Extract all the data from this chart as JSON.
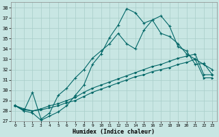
{
  "xlabel": "Humidex (Indice chaleur)",
  "xlim": [
    -0.5,
    23.5
  ],
  "ylim": [
    27,
    38.5
  ],
  "yticks": [
    27,
    28,
    29,
    30,
    31,
    32,
    33,
    34,
    35,
    36,
    37,
    38
  ],
  "xticks": [
    0,
    1,
    2,
    3,
    4,
    5,
    6,
    7,
    8,
    9,
    10,
    11,
    12,
    13,
    14,
    15,
    16,
    17,
    18,
    19,
    20,
    21,
    22,
    23
  ],
  "bg_color": "#c8e6e3",
  "grid_color": "#a8cdc9",
  "line_color": "#006666",
  "line1_y": [
    28.5,
    28.0,
    27.8,
    27.1,
    27.5,
    27.9,
    28.5,
    29.5,
    30.5,
    32.5,
    33.5,
    35.1,
    36.3,
    37.9,
    37.5,
    36.5,
    36.8,
    37.2,
    36.2,
    34.2,
    33.8,
    32.5,
    32.6,
    31.5
  ],
  "line2_y": [
    28.5,
    28.0,
    29.8,
    27.2,
    27.8,
    29.5,
    30.2,
    31.2,
    32.0,
    33.1,
    33.8,
    34.5,
    35.5,
    34.5,
    34.0,
    35.8,
    36.8,
    35.5,
    35.2,
    34.5,
    33.5,
    33.0,
    32.5,
    32.0
  ],
  "line3_y": [
    28.5,
    28.2,
    28.0,
    28.2,
    28.5,
    28.7,
    29.0,
    29.3,
    29.8,
    30.2,
    30.5,
    30.8,
    31.1,
    31.4,
    31.7,
    32.0,
    32.3,
    32.5,
    32.8,
    33.1,
    33.3,
    33.5,
    31.5,
    31.5
  ],
  "line4_y": [
    28.5,
    28.1,
    28.0,
    28.1,
    28.3,
    28.5,
    28.8,
    29.0,
    29.4,
    29.8,
    30.1,
    30.4,
    30.7,
    31.0,
    31.3,
    31.5,
    31.8,
    32.0,
    32.2,
    32.5,
    32.7,
    33.0,
    31.2,
    31.2
  ]
}
